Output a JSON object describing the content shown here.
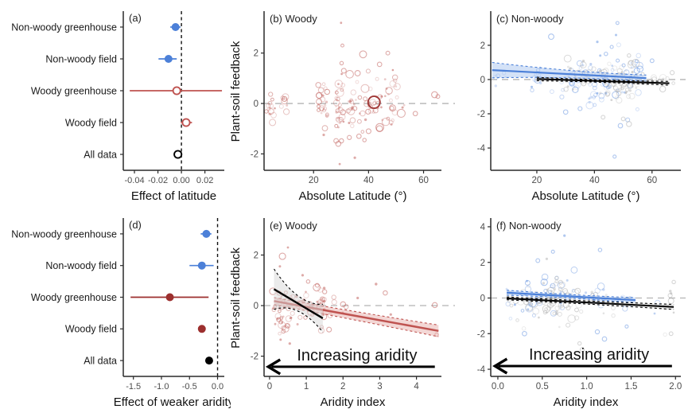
{
  "colors": {
    "blue": "#4c80d8",
    "blue_pt": "#6d99e2",
    "red": "#bf5350",
    "red_pt": "#c26560",
    "dark_red": "#9c2f2e",
    "black": "#000000",
    "gray_pt": "#b4b4b4",
    "hline": "#b3b3b3",
    "ribbon_red": "#e8b0ab",
    "ribbon_blue": "#a9c6ef",
    "ribbon_gray": "#d8d8d8",
    "axis": "#2a2a2a",
    "tick_text": "#4d4d4d",
    "text": "#111111"
  },
  "chart_data": [
    {
      "id": "a",
      "type": "forest",
      "panel_label": "(a)",
      "xlabel": "Effect of latitude",
      "x_range": [
        -0.0495,
        0.0365
      ],
      "x_ticks": [
        -0.04,
        -0.02,
        0,
        0.02
      ],
      "x_tick_labels": [
        "-0.04",
        "-0.02",
        "0.00",
        "0.02"
      ],
      "vline": 0,
      "rows": [
        {
          "label": "Non-woody greenhouse",
          "est": -0.005,
          "lo": -0.0095,
          "hi": -0.0008,
          "color": "blue",
          "filled": true
        },
        {
          "label": "Non-woody field",
          "est": -0.011,
          "lo": -0.0195,
          "hi": -0.004,
          "color": "blue",
          "filled": true
        },
        {
          "label": "Woody greenhouse",
          "est": -0.004,
          "lo": -0.044,
          "hi": 0.0345,
          "color": "red",
          "filled": false
        },
        {
          "label": "Woody field",
          "est": 0.004,
          "lo": -0.0005,
          "hi": 0.009,
          "color": "red",
          "filled": false
        },
        {
          "label": "All data",
          "est": -0.003,
          "lo": -0.0055,
          "hi": -0.0005,
          "color": "black",
          "filled": false
        }
      ]
    },
    {
      "id": "b",
      "type": "scatter",
      "panel_label": "(b) Woody",
      "xlabel": "Absolute Latitude (°)",
      "ylabel": "Plant-soil feedback",
      "x_range": [
        2,
        66.5
      ],
      "y_range": [
        -2.65,
        3.6
      ],
      "x_ticks": [
        20,
        40,
        60
      ],
      "y_ticks": [
        2,
        0,
        -2
      ],
      "hline": 0,
      "seed": 11,
      "clusters": [
        {
          "n": 13,
          "x": [
            2.5,
            6.5
          ],
          "mu": -0.05,
          "sd": 0.3,
          "color": "red_pt"
        },
        {
          "n": 7,
          "x": [
            8,
            10.5
          ],
          "mu": -0.1,
          "sd": 0.28,
          "color": "red_pt"
        },
        {
          "n": 26,
          "x": [
            21.5,
            25
          ],
          "mu": 0,
          "sd": 0.33,
          "color": "red_pt"
        },
        {
          "n": 30,
          "x": [
            28,
            31
          ],
          "mu": -0.1,
          "sd": 0.75,
          "color": "red_pt"
        },
        {
          "n": 20,
          "x": [
            32.5,
            36
          ],
          "mu": -0.1,
          "sd": 0.5,
          "color": "red_pt"
        },
        {
          "n": 50,
          "x": [
            36.5,
            51
          ],
          "mu": 0.05,
          "sd": 0.55,
          "color": "red_pt"
        },
        {
          "n": 3,
          "x": [
            51.5,
            53
          ],
          "mu": -0.25,
          "sd": 0.25,
          "color": "red_pt"
        }
      ],
      "points": [
        [
          30,
          3.2,
          1.4
        ],
        [
          30.5,
          2.3,
          1.9
        ],
        [
          38,
          1.95,
          4.4
        ],
        [
          29.5,
          -2.4,
          1.4
        ],
        [
          35,
          -2.15,
          1.6
        ],
        [
          57,
          -0.4,
          2.8
        ],
        [
          64,
          0.35,
          3.8
        ],
        [
          65.2,
          0.28,
          2.4
        ],
        [
          30.2,
          1.6,
          2.2
        ],
        [
          31,
          1.3,
          3
        ],
        [
          36,
          1.2,
          3.4
        ],
        [
          47,
          2.0,
          2.4
        ],
        [
          44,
          1.55,
          2.8
        ],
        [
          29,
          -1.6,
          3.2
        ],
        [
          33,
          -1.35,
          2.6
        ],
        [
          36.5,
          -1.3,
          2.8
        ],
        [
          40,
          -1.1,
          3
        ],
        [
          44,
          -1.0,
          3.8
        ],
        [
          38.5,
          -1.45,
          2.2
        ]
      ],
      "point_color": "red_pt",
      "big_point": {
        "x": 42,
        "y": 0.05,
        "r": 7.5,
        "color": "dark_red"
      }
    },
    {
      "id": "c",
      "type": "scatter",
      "panel_label": "(c) Non-woody",
      "xlabel": "Absolute Latitude (°)",
      "x_range": [
        4,
        70
      ],
      "y_range": [
        -5.3,
        3.9
      ],
      "x_ticks": [
        20,
        40,
        60
      ],
      "y_ticks": [
        2,
        0,
        -2,
        -4
      ],
      "hline": 0,
      "seed": 23,
      "clusters": [
        {
          "n": 5,
          "x": [
            5,
            13
          ],
          "mu": 0.1,
          "sd": 0.3,
          "color": "blue_pt"
        },
        {
          "n": 28,
          "x": [
            18,
            38
          ],
          "mu": 0.1,
          "sd": 0.5,
          "color": "blue_pt"
        },
        {
          "n": 55,
          "x": [
            38,
            56
          ],
          "mu": -0.15,
          "sd": 0.75,
          "color": "blue_pt"
        },
        {
          "n": 32,
          "x": [
            30,
            44
          ],
          "mu": 0,
          "sd": 0.45,
          "color": "gray_pt"
        },
        {
          "n": 62,
          "x": [
            43,
            55
          ],
          "mu": -0.1,
          "sd": 0.6,
          "color": "gray_pt"
        },
        {
          "n": 14,
          "x": [
            56,
            68
          ],
          "mu": -0.05,
          "sd": 0.28,
          "color": "gray_pt"
        }
      ],
      "points": [
        [
          25,
          2.5,
          3.4,
          "blue_pt"
        ],
        [
          48,
          3.3,
          1.9,
          "blue_pt"
        ],
        [
          47.5,
          2.6,
          1.5,
          "blue_pt"
        ],
        [
          47,
          -4.5,
          2,
          "blue_pt"
        ],
        [
          49,
          -2.7,
          2.8,
          "blue_pt"
        ],
        [
          52,
          -2.6,
          3.2,
          "gray_pt"
        ],
        [
          50,
          -2.3,
          2.4,
          "gray_pt"
        ],
        [
          30,
          -1.9,
          2.8,
          "blue_pt"
        ],
        [
          35,
          -1.7,
          2.5,
          "blue_pt"
        ],
        [
          60,
          1.1,
          2.4,
          "blue_pt"
        ],
        [
          67,
          0.4,
          2.6,
          "gray_pt"
        ],
        [
          44,
          1.5,
          2.2,
          "blue_pt"
        ],
        [
          46,
          1.9,
          2,
          "blue_pt"
        ],
        [
          52,
          1.4,
          2.2,
          "gray_pt"
        ],
        [
          41,
          2.2,
          1.6,
          "blue_pt"
        ],
        [
          43,
          -2.2,
          2.4,
          "gray_pt"
        ]
      ],
      "point_color": "blue_pt",
      "lines": [
        {
          "x0": 4.5,
          "y0": 0.55,
          "x1": 58,
          "y1": 0.08,
          "color": "blue",
          "ribbon": "ribbon_blue",
          "m0": 0.45,
          "mm": 0.22,
          "m1": 0.18,
          "width": 2.2
        },
        {
          "x0": 20,
          "y0": 0.03,
          "x1": 66,
          "y1": -0.22,
          "color": "black",
          "ribbon": "ribbon_gray",
          "m0": 0.1,
          "mm": 0.07,
          "m1": 0.11,
          "width": 2
        }
      ]
    },
    {
      "id": "d",
      "type": "forest",
      "panel_label": "(d)",
      "xlabel": "Effect of weaker aridity",
      "x_range": [
        -1.68,
        0.12
      ],
      "x_ticks": [
        -1.5,
        -1.0,
        -0.5,
        0
      ],
      "x_tick_labels": [
        "-1.5",
        "-1.0",
        "-0.5",
        "0.0"
      ],
      "vline": 0,
      "rows": [
        {
          "label": "Non-woody greenhouse",
          "est": -0.2,
          "lo": -0.3,
          "hi": -0.11,
          "color": "blue",
          "filled": true
        },
        {
          "label": "Non-woody field",
          "est": -0.28,
          "lo": -0.5,
          "hi": -0.07,
          "color": "blue",
          "filled": true
        },
        {
          "label": "Woody greenhouse",
          "est": -0.85,
          "lo": -1.55,
          "hi": -0.16,
          "color": "dark_red",
          "filled": true
        },
        {
          "label": "Woody field",
          "est": -0.28,
          "lo": -0.34,
          "hi": -0.22,
          "color": "dark_red",
          "filled": true
        },
        {
          "label": "All data",
          "est": -0.15,
          "lo": -0.185,
          "hi": -0.115,
          "color": "black",
          "filled": true
        }
      ]
    },
    {
      "id": "e",
      "type": "scatter",
      "panel_label": "(e) Woody",
      "xlabel": "Aridity index",
      "ylabel": "Plant-soil feedback",
      "x_range": [
        -0.15,
        4.68
      ],
      "y_range": [
        -2.8,
        3.4
      ],
      "x_ticks": [
        0,
        1,
        2,
        3,
        4
      ],
      "y_ticks": [
        2,
        0,
        -2
      ],
      "hline": 0,
      "seed": 37,
      "clusters": [
        {
          "n": 72,
          "x": [
            0.08,
            1.5
          ],
          "mu": 0,
          "sd": 0.4,
          "clamp": [
            -1.55,
            1.35
          ],
          "color": "red_pt"
        },
        {
          "n": 12,
          "x": [
            0.1,
            0.6
          ],
          "mu": -0.7,
          "sd": 0.3,
          "color": "red_pt"
        },
        {
          "n": 5,
          "x": [
            1.5,
            2.1
          ],
          "mu": -0.15,
          "sd": 0.3,
          "color": "red_pt"
        }
      ],
      "points": [
        [
          0.35,
          1.95,
          4
        ],
        [
          0.5,
          2.3,
          1.4
        ],
        [
          0.28,
          1.55,
          1.5
        ],
        [
          0.9,
          1.2,
          1.6
        ],
        [
          1.05,
          0.95,
          2.2
        ],
        [
          1.3,
          0.8,
          2.4
        ],
        [
          2.0,
          0.05,
          3.2
        ],
        [
          2.4,
          0.3,
          1.6
        ],
        [
          2.9,
          0.85,
          1.7
        ],
        [
          3.15,
          0.5,
          2.7
        ],
        [
          3.3,
          -0.35,
          1.6
        ],
        [
          4.5,
          0.02,
          3.2
        ],
        [
          4.55,
          -1.15,
          2.2
        ],
        [
          1.62,
          -0.95,
          3
        ],
        [
          0.3,
          -1.35,
          1.5
        ],
        [
          0.55,
          -1.5,
          1.6
        ],
        [
          1.5,
          0.55,
          2.6
        ]
      ],
      "point_color": "red_pt",
      "lines": [
        {
          "x0": 0.12,
          "y0": 0.18,
          "x1": 4.6,
          "y1": -1.0,
          "color": "red",
          "ribbon": "ribbon_red",
          "m0": 0.14,
          "mm": 0.17,
          "m1": 0.23,
          "width": 2.5
        },
        {
          "x0": 0.12,
          "y0": 0.65,
          "x1": 1.45,
          "y1": -0.5,
          "color": "black",
          "ribbon": "ribbon_gray",
          "m0": 0.8,
          "mm": 0.3,
          "m1": 0.55,
          "width": 2.4
        }
      ],
      "arrow": {
        "label": "Increasing aridity",
        "y": -2.42,
        "x_tip": -0.08,
        "x_tail": 4.5
      }
    },
    {
      "id": "f",
      "type": "scatter",
      "panel_label": "(f) Non-woody",
      "xlabel": "Aridity index",
      "x_range": [
        -0.08,
        2.06
      ],
      "y_range": [
        -4.4,
        4.4
      ],
      "x_ticks": [
        0,
        0.5,
        1,
        1.5,
        2
      ],
      "x_tick_labels": [
        "0.0",
        "0.5",
        "1.0",
        "1.5",
        "2.0"
      ],
      "y_ticks": [
        4,
        2,
        0,
        -2,
        -4
      ],
      "hline": 0,
      "seed": 49,
      "clusters": [
        {
          "n": 58,
          "x": [
            0.08,
            1.25
          ],
          "mu": 0.05,
          "sd": 0.55,
          "clamp": [
            -2.2,
            2.3
          ],
          "color": "blue_pt"
        },
        {
          "n": 66,
          "x": [
            0.12,
            1.3
          ],
          "mu": -0.15,
          "sd": 0.55,
          "clamp": [
            -2.6,
            1.7
          ],
          "color": "gray_pt"
        },
        {
          "n": 28,
          "x": [
            0.5,
            0.72
          ],
          "mu": -0.1,
          "sd": 0.5,
          "color": "gray_pt"
        },
        {
          "n": 7,
          "x": [
            1.3,
            1.8
          ],
          "mu": -0.25,
          "sd": 0.35,
          "color": "blue_pt"
        },
        {
          "n": 7,
          "x": [
            1.88,
            2.0
          ],
          "mu": -0.7,
          "sd": 0.8,
          "color": "gray_pt"
        }
      ],
      "points": [
        [
          0.75,
          3.5,
          1.6,
          "blue_pt"
        ],
        [
          0.62,
          2.6,
          2,
          "blue_pt"
        ],
        [
          0.45,
          2.1,
          2.4,
          "blue_pt"
        ],
        [
          1.15,
          2.7,
          2.2,
          "blue_pt"
        ],
        [
          0.95,
          -2.9,
          2.6,
          "gray_pt"
        ],
        [
          0.92,
          -2.55,
          2.2,
          "gray_pt"
        ],
        [
          1.2,
          -2.3,
          2.8,
          "blue_pt"
        ],
        [
          1.45,
          -1.6,
          2,
          "blue_pt"
        ],
        [
          1.98,
          0.9,
          2.2,
          "gray_pt"
        ],
        [
          1.95,
          -2.0,
          2.4,
          "gray_pt"
        ],
        [
          0.3,
          -2.0,
          2.8,
          "blue_pt"
        ],
        [
          0.55,
          2.2,
          1.6,
          "gray_pt"
        ],
        [
          1.12,
          -1.9,
          2.6,
          "blue_pt"
        ]
      ],
      "point_color": "blue_pt",
      "lines": [
        {
          "x0": 0.1,
          "y0": 0.3,
          "x1": 1.55,
          "y1": -0.12,
          "color": "blue",
          "ribbon": "ribbon_blue",
          "m0": 0.14,
          "mm": 0.1,
          "m1": 0.14,
          "width": 2.2
        },
        {
          "x0": 0.1,
          "y0": -0.02,
          "x1": 1.98,
          "y1": -0.5,
          "color": "black",
          "ribbon": "ribbon_gray",
          "m0": 0.08,
          "mm": 0.09,
          "m1": 0.14,
          "width": 2
        }
      ],
      "arrow": {
        "label": "Increasing aridity",
        "y": -3.82,
        "x_tip": -0.05,
        "x_tail": 1.96
      }
    }
  ]
}
